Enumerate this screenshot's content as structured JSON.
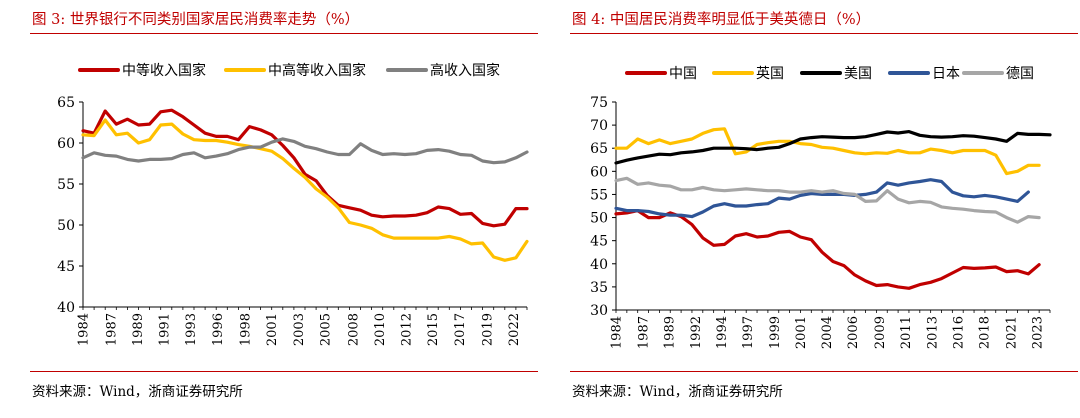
{
  "left": {
    "title": "图 3:   世界银行不同类别国家居民消费率走势（%）",
    "source": "资料来源：Wind，浙商证券研究所",
    "chart_data": {
      "type": "line",
      "title": "",
      "xlabel": "",
      "ylabel": "",
      "ylim": [
        40,
        65
      ],
      "yticks": [
        40,
        45,
        50,
        55,
        60,
        65
      ],
      "xlim": [
        1984,
        2024
      ],
      "xtick_labels": [
        "1984",
        "1987",
        "1989",
        "1991",
        "1993",
        "1996",
        "1998",
        "2001",
        "2003",
        "2005",
        "2008",
        "2010",
        "2012",
        "2015",
        "2017",
        "2019",
        "2022"
      ],
      "xtick_positions": [
        1984,
        1986.5,
        1988.9,
        1991.3,
        1993.7,
        1996.1,
        1998.6,
        2001,
        2003.4,
        2005.8,
        2008.3,
        2010.7,
        2013.1,
        2015.5,
        2017.9,
        2020.4,
        2022.8
      ],
      "legend": "top",
      "grid": false,
      "series": [
        {
          "name": "中等收入国家",
          "color": "#c00000",
          "x": [
            1984,
            1985,
            1986,
            1987,
            1988,
            1989,
            1990,
            1991,
            1992,
            1993,
            1994,
            1995,
            1996,
            1997,
            1998,
            1999,
            2000,
            2001,
            2002,
            2003,
            2004,
            2005,
            2006,
            2007,
            2008,
            2009,
            2010,
            2011,
            2012,
            2013,
            2014,
            2015,
            2016,
            2017,
            2018,
            2019,
            2020,
            2021,
            2022,
            2023,
            2024
          ],
          "values": [
            61.5,
            61.2,
            63.9,
            62.3,
            62.9,
            62.2,
            62.3,
            63.8,
            64.0,
            63.2,
            62.2,
            61.2,
            60.8,
            60.8,
            60.4,
            62.0,
            61.6,
            61.0,
            59.7,
            58.2,
            56.2,
            55.4,
            53.6,
            52.4,
            52.1,
            51.8,
            51.2,
            51.0,
            51.1,
            51.1,
            51.2,
            51.5,
            52.2,
            52.0,
            51.3,
            51.4,
            50.2,
            49.9,
            50.1,
            52.0,
            52.0
          ]
        },
        {
          "name": "中高等收入国家",
          "color": "#ffc000",
          "x": [
            1984,
            1985,
            1986,
            1987,
            1988,
            1989,
            1990,
            1991,
            1992,
            1993,
            1994,
            1995,
            1996,
            1997,
            1998,
            1999,
            2000,
            2001,
            2002,
            2003,
            2004,
            2005,
            2006,
            2007,
            2008,
            2009,
            2010,
            2011,
            2012,
            2013,
            2014,
            2015,
            2016,
            2017,
            2018,
            2019,
            2020,
            2021,
            2022,
            2023,
            2024
          ],
          "values": [
            61.0,
            60.9,
            62.8,
            61.0,
            61.2,
            60.0,
            60.4,
            62.2,
            62.3,
            61.1,
            60.4,
            60.3,
            60.3,
            60.1,
            59.8,
            59.6,
            59.3,
            59.0,
            58.1,
            56.9,
            55.8,
            54.4,
            53.4,
            52.1,
            50.3,
            50.0,
            49.6,
            48.8,
            48.4,
            48.4,
            48.4,
            48.4,
            48.4,
            48.6,
            48.3,
            47.7,
            47.8,
            46.1,
            45.7,
            46.0,
            48.0
          ]
        },
        {
          "name": "高收入国家",
          "color": "#808080",
          "x": [
            1984,
            1985,
            1986,
            1987,
            1988,
            1989,
            1990,
            1991,
            1992,
            1993,
            1994,
            1995,
            1996,
            1997,
            1998,
            1999,
            2000,
            2001,
            2002,
            2003,
            2004,
            2005,
            2006,
            2007,
            2008,
            2009,
            2010,
            2011,
            2012,
            2013,
            2014,
            2015,
            2016,
            2017,
            2018,
            2019,
            2020,
            2021,
            2022,
            2023,
            2024
          ],
          "values": [
            58.2,
            58.8,
            58.5,
            58.4,
            58.0,
            57.8,
            58.0,
            58.0,
            58.1,
            58.6,
            58.8,
            58.2,
            58.4,
            58.7,
            59.2,
            59.5,
            59.5,
            60.1,
            60.5,
            60.2,
            59.6,
            59.3,
            58.9,
            58.6,
            58.6,
            59.9,
            59.1,
            58.6,
            58.7,
            58.6,
            58.7,
            59.1,
            59.2,
            59.0,
            58.6,
            58.5,
            57.8,
            57.6,
            57.7,
            58.2,
            58.9
          ]
        }
      ]
    }
  },
  "right": {
    "title": "图 4:   中国居民消费率明显低于美英德日（%）",
    "source": "资料来源：Wind，浙商证券研究所",
    "chart_data": {
      "type": "line",
      "title": "",
      "xlabel": "",
      "ylabel": "",
      "ylim": [
        30,
        75
      ],
      "yticks": [
        30,
        35,
        40,
        45,
        50,
        55,
        60,
        65,
        70,
        75
      ],
      "xlim": [
        1984,
        2024
      ],
      "xtick_labels": [
        "1984",
        "1987",
        "1989",
        "1992",
        "1994",
        "1997",
        "1999",
        "2001",
        "2004",
        "2006",
        "2009",
        "2011",
        "2013",
        "2016",
        "2018",
        "2021",
        "2023"
      ],
      "xtick_positions": [
        1984,
        1986.5,
        1988.9,
        1991.3,
        1993.7,
        1996.1,
        1998.6,
        2001,
        2003.4,
        2005.8,
        2008.3,
        2010.7,
        2013.1,
        2015.5,
        2017.9,
        2020.4,
        2022.8
      ],
      "legend": "top",
      "grid": false,
      "series": [
        {
          "name": "中国",
          "color": "#c00000",
          "x": [
            1984,
            1985,
            1986,
            1987,
            1988,
            1989,
            1990,
            1991,
            1992,
            1993,
            1994,
            1995,
            1996,
            1997,
            1998,
            1999,
            2000,
            2001,
            2002,
            2003,
            2004,
            2005,
            2006,
            2007,
            2008,
            2009,
            2010,
            2011,
            2012,
            2013,
            2014,
            2015,
            2016,
            2017,
            2018,
            2019,
            2020,
            2021,
            2022,
            2023
          ],
          "values": [
            50.8,
            51.0,
            51.5,
            50.0,
            50.0,
            51.0,
            50.2,
            48.5,
            45.6,
            44.0,
            44.2,
            46.0,
            46.5,
            45.8,
            46.0,
            46.8,
            47.0,
            45.8,
            45.2,
            42.5,
            40.5,
            39.6,
            37.6,
            36.3,
            35.3,
            35.5,
            35.0,
            34.7,
            35.5,
            36.0,
            36.8,
            38.0,
            39.2,
            39.0,
            39.1,
            39.3,
            38.3,
            38.5,
            37.8,
            39.8
          ]
        },
        {
          "name": "英国",
          "color": "#ffc000",
          "x": [
            1984,
            1985,
            1986,
            1987,
            1988,
            1989,
            1990,
            1991,
            1992,
            1993,
            1994,
            1995,
            1996,
            1997,
            1998,
            1999,
            2000,
            2001,
            2002,
            2003,
            2004,
            2005,
            2006,
            2007,
            2008,
            2009,
            2010,
            2011,
            2012,
            2013,
            2014,
            2015,
            2016,
            2017,
            2018,
            2019,
            2020,
            2021,
            2022,
            2023
          ],
          "values": [
            65.0,
            65.0,
            67.0,
            66.0,
            66.8,
            66.0,
            66.5,
            67.0,
            68.2,
            69.0,
            69.2,
            63.8,
            64.2,
            65.8,
            66.2,
            66.5,
            66.5,
            66.0,
            65.8,
            65.2,
            65.0,
            64.5,
            64.0,
            63.8,
            64.0,
            63.9,
            64.5,
            64.0,
            64.0,
            64.8,
            64.5,
            64.0,
            64.5,
            64.5,
            64.5,
            63.5,
            59.5,
            60.0,
            61.3,
            61.3
          ]
        },
        {
          "name": "美国",
          "color": "#000000",
          "x": [
            1984,
            1985,
            1986,
            1987,
            1988,
            1989,
            1990,
            1991,
            1992,
            1993,
            1994,
            1995,
            1996,
            1997,
            1998,
            1999,
            2000,
            2001,
            2002,
            2003,
            2004,
            2005,
            2006,
            2007,
            2008,
            2009,
            2010,
            2011,
            2012,
            2013,
            2014,
            2015,
            2016,
            2017,
            2018,
            2019,
            2020,
            2021,
            2022,
            2023,
            2024
          ],
          "values": [
            61.8,
            62.4,
            62.9,
            63.3,
            63.7,
            63.6,
            64.0,
            64.2,
            64.5,
            65.0,
            65.0,
            65.0,
            64.9,
            64.7,
            65.0,
            65.2,
            66.0,
            67.0,
            67.3,
            67.5,
            67.4,
            67.3,
            67.3,
            67.5,
            68.0,
            68.5,
            68.3,
            68.6,
            67.8,
            67.5,
            67.4,
            67.5,
            67.7,
            67.6,
            67.3,
            67.0,
            66.5,
            68.2,
            68.0,
            68.0,
            67.9
          ]
        },
        {
          "name": "日本",
          "color": "#2f5597",
          "x": [
            1984,
            1985,
            1986,
            1987,
            1988,
            1989,
            1990,
            1991,
            1992,
            1993,
            1994,
            1995,
            1996,
            1997,
            1998,
            1999,
            2000,
            2001,
            2002,
            2003,
            2004,
            2005,
            2006,
            2007,
            2008,
            2009,
            2010,
            2011,
            2012,
            2013,
            2014,
            2015,
            2016,
            2017,
            2018,
            2019,
            2020,
            2021,
            2022
          ],
          "values": [
            52.0,
            51.5,
            51.5,
            51.3,
            50.8,
            50.5,
            50.5,
            50.2,
            51.2,
            52.5,
            53.0,
            52.5,
            52.5,
            52.8,
            53.0,
            54.2,
            54.0,
            54.8,
            55.2,
            55.0,
            55.0,
            55.0,
            54.8,
            55.0,
            55.5,
            57.5,
            57.0,
            57.5,
            57.8,
            58.2,
            57.8,
            55.5,
            54.7,
            54.5,
            54.8,
            54.5,
            54.0,
            53.5,
            55.5
          ]
        },
        {
          "name": "德国",
          "color": "#a6a6a6",
          "x": [
            1984,
            1985,
            1986,
            1987,
            1988,
            1989,
            1990,
            1991,
            1992,
            1993,
            1994,
            1995,
            1996,
            1997,
            1998,
            1999,
            2000,
            2001,
            2002,
            2003,
            2004,
            2005,
            2006,
            2007,
            2008,
            2009,
            2010,
            2011,
            2012,
            2013,
            2014,
            2015,
            2016,
            2017,
            2018,
            2019,
            2020,
            2021,
            2022,
            2023
          ],
          "values": [
            58.0,
            58.5,
            57.2,
            57.5,
            57.0,
            56.8,
            56.0,
            56.0,
            56.5,
            56.0,
            55.8,
            56.0,
            56.2,
            56.0,
            55.8,
            55.8,
            55.5,
            55.5,
            55.8,
            55.5,
            55.8,
            55.2,
            55.0,
            53.5,
            53.6,
            55.8,
            54.0,
            53.2,
            53.5,
            53.3,
            52.3,
            52.0,
            51.8,
            51.5,
            51.3,
            51.2,
            50.0,
            49.0,
            50.2,
            50.0
          ]
        }
      ]
    }
  }
}
